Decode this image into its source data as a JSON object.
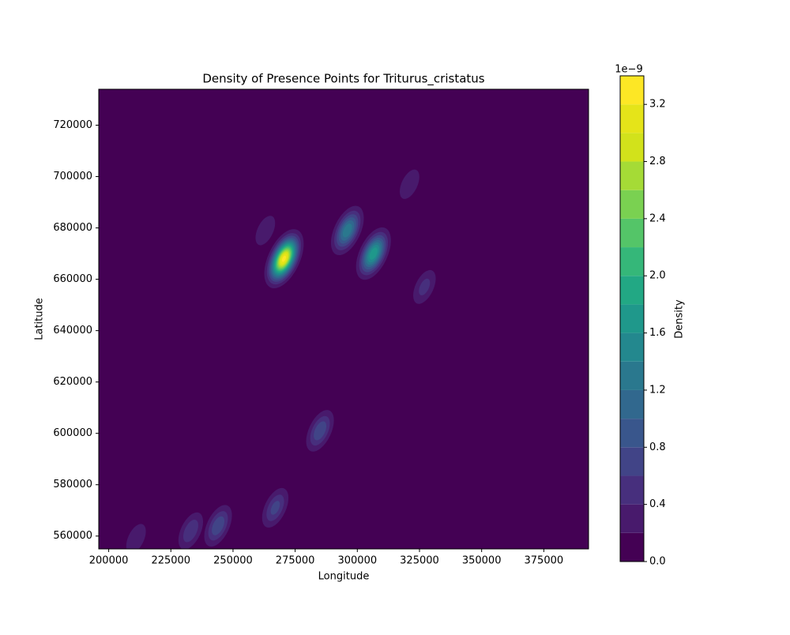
{
  "chart_data": {
    "type": "contour",
    "title": "Density of Presence Points for Triturus_cristatus",
    "xlabel": "Longitude",
    "ylabel": "Latitude",
    "xlim": [
      196000,
      393000
    ],
    "xticks": [
      200000,
      225000,
      250000,
      275000,
      300000,
      325000,
      350000,
      375000
    ],
    "ylim": [
      555000,
      734000
    ],
    "yticks": [
      560000,
      580000,
      600000,
      620000,
      640000,
      660000,
      680000,
      700000,
      720000
    ],
    "hotspots": {
      "x": [
        270500,
        296000,
        306500,
        263000,
        321000,
        327000,
        285000,
        267000,
        244000,
        233000,
        211000
      ],
      "y": [
        668000,
        679000,
        670000,
        679000,
        697000,
        657000,
        601000,
        571000,
        564000,
        562000,
        559000
      ],
      "values": [
        3.3,
        1.4,
        1.8,
        0.4,
        0.4,
        0.5,
        0.8,
        0.7,
        0.8,
        0.6,
        0.4
      ]
    },
    "colorbar": {
      "label": "Density",
      "offset_label": "1e−9",
      "clim": [
        0,
        3.4
      ],
      "levels": [
        0,
        0.2,
        0.4,
        0.6,
        0.8,
        1.0,
        1.2,
        1.4,
        1.6,
        1.8,
        2.0,
        2.2,
        2.4,
        2.6,
        2.8,
        3.0,
        3.2,
        3.4
      ],
      "colors": [
        "#440154",
        "#481a6c",
        "#472f7d",
        "#414487",
        "#39568c",
        "#31688e",
        "#2a788e",
        "#23888e",
        "#1f988b",
        "#22a884",
        "#35b779",
        "#54c568",
        "#7ad151",
        "#a5db36",
        "#d2e21b",
        "#e5e419",
        "#fde725"
      ],
      "ticks": [
        {
          "value": 0,
          "label": "0.0"
        },
        0.4,
        0.8,
        1.2,
        1.6,
        {
          "value": 2,
          "label": "2.0"
        },
        2.4,
        2.8,
        3.2
      ]
    }
  }
}
